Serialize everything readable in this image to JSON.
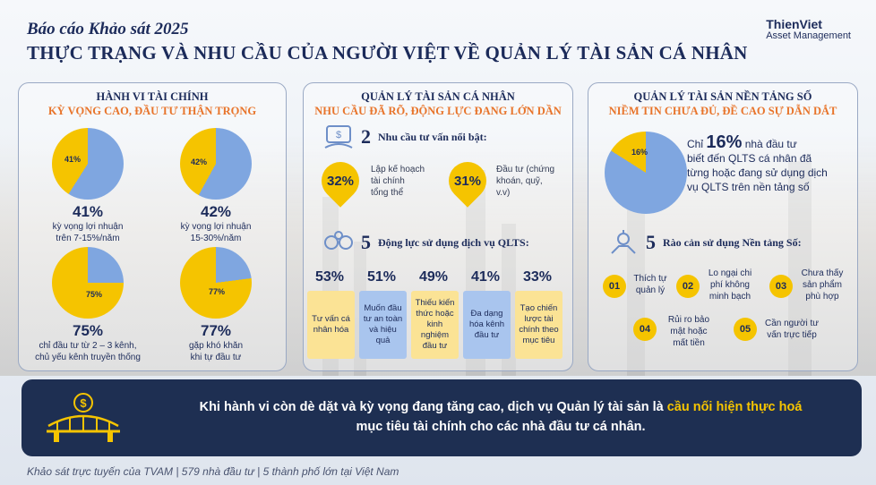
{
  "header": {
    "kicker": "Báo cáo Khảo sát 2025",
    "title": "THỰC TRẠNG VÀ NHU CẦU CỦA NGƯỜI VIỆT VỀ QUẢN LÝ TÀI SẢN CÁ NHÂN",
    "brand_line1": "ThienViet",
    "brand_line2": "Asset Management"
  },
  "colors": {
    "navy": "#1c2b5a",
    "yellow": "#f5c400",
    "blue": "#7fa6e0",
    "orange": "#e8742a",
    "banner": "#1e2f52"
  },
  "panel1": {
    "title": "HÀNH VI TÀI CHÍNH",
    "subtitle": "KỲ VỌNG CAO, ĐẦU TƯ THẬN TRỌNG",
    "pies": [
      {
        "slice_label": "41%",
        "pct": "41%",
        "caption1": "kỳ vọng  lợi nhuận",
        "caption2": "trên 7-15%/năm",
        "fraction": 0.41
      },
      {
        "slice_label": "42%",
        "pct": "42%",
        "caption1": "kỳ vọng lợi nhuận",
        "caption2": "15-30%/năm",
        "fraction": 0.42
      },
      {
        "slice_label": "75%",
        "pct": "75%",
        "caption1": "chỉ đầu tư từ 2 – 3 kênh,",
        "caption2": "chủ yếu kênh truyền thống",
        "fraction": 0.75
      },
      {
        "slice_label": "77%",
        "pct": "77%",
        "caption1": "gặp khó khăn",
        "caption2": "khi tự đầu tư",
        "fraction": 0.77
      }
    ]
  },
  "panel2": {
    "title": "QUẢN LÝ TÀI SẢN CÁ NHÂN",
    "subtitle": "NHU CẦU ĐÃ RÕ, ĐỘNG LỰC ĐANG LỚN DẦN",
    "needs_num": "2",
    "needs_head": "Nhu cầu tư vấn nổi bật:",
    "needs": [
      {
        "value": "32%",
        "l1": "Lập kế hoạch",
        "l2": "tài chính",
        "l3": "tổng thể"
      },
      {
        "value": "31%",
        "l1": "Đầu tư (chứng",
        "l2": "khoán, quỹ,",
        "l3": "v.v)"
      }
    ],
    "mot_num": "5",
    "mot_head": "Động lực sử dụng dịch vụ QLTS:",
    "motivations": [
      {
        "pct": "53%",
        "text": "Tư vấn cá nhân hóa"
      },
      {
        "pct": "51%",
        "text": "Muốn đầu tư an toàn và hiệu quả"
      },
      {
        "pct": "49%",
        "text": "Thiếu kiến thức hoặc kinh nghiệm đầu tư"
      },
      {
        "pct": "41%",
        "text": "Đa dạng hóa kênh đầu tư"
      },
      {
        "pct": "33%",
        "text": "Tạo chiến lược tài chính theo mục tiêu"
      }
    ]
  },
  "panel3": {
    "title": "QUẢN LÝ TÀI SẢN NỀN TẢNG SỐ",
    "subtitle": "NIỀM TIN CHƯA ĐỦ, ĐỀ CAO SỰ DẪN DẮT",
    "pie_label": "16%",
    "pie_fraction": 0.16,
    "stat_pre": "Chỉ ",
    "stat_value": "16%",
    "stat_post": " nhà đầu tư",
    "stat_l2": "biết đến QLTS cá nhân đã",
    "stat_l3": "từng hoặc đang sử dụng dịch",
    "stat_l4": "vụ QLTS trên nền tảng số",
    "bar_num": "5",
    "bar_head": "Rào cản sử dụng Nền tảng Số:",
    "barriers": [
      {
        "n": "01",
        "l1": "Thích tự",
        "l2": "quản lý",
        "l3": ""
      },
      {
        "n": "02",
        "l1": "Lo ngại chi",
        "l2": "phí không",
        "l3": "minh bạch"
      },
      {
        "n": "03",
        "l1": "Chưa thấy",
        "l2": "sản phẩm",
        "l3": "phù hợp"
      },
      {
        "n": "04",
        "l1": "Rủi ro bảo",
        "l2": "mật hoặc",
        "l3": "mất tiền"
      },
      {
        "n": "05",
        "l1": "Cần người tư",
        "l2": "vấn trực tiếp",
        "l3": ""
      }
    ]
  },
  "banner": {
    "text_pre": "Khi hành vi còn dè dặt và kỳ vọng đang tăng cao, dịch vụ Quản lý tài sản là ",
    "text_hl": "cầu nối hiện thực hoá",
    "text_post": "mục tiêu tài chính cho các nhà đầu tư cá nhân."
  },
  "footer": "Khảo sát trực tuyến của TVAM | 579 nhà đầu tư | 5 thành phố lớn tại Việt Nam"
}
